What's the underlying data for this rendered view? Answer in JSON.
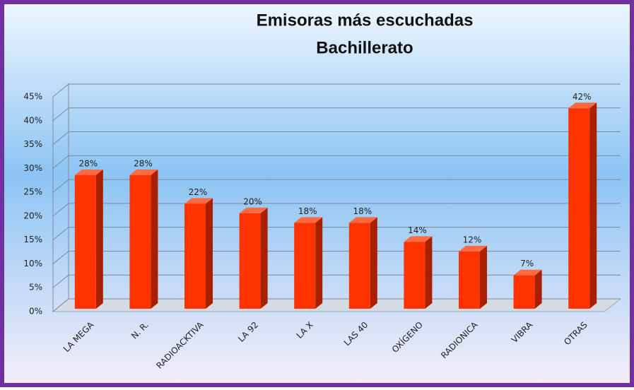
{
  "chart_data": {
    "type": "bar3d",
    "title": "Emisoras más escuchadas",
    "subtitle": "Bachillerato",
    "categories": [
      "LA MEGA",
      "N. R.",
      "RADIOACKTIVA",
      "LA 92",
      "LA X",
      "LAS 40",
      "OXÍGENO",
      "RADIONICA",
      "VIBRA",
      "OTRAS"
    ],
    "values": [
      28,
      28,
      22,
      20,
      18,
      18,
      14,
      12,
      7,
      42
    ],
    "value_labels": [
      "28%",
      "28%",
      "22%",
      "20%",
      "18%",
      "18%",
      "14%",
      "12%",
      "7%",
      "42%"
    ],
    "color": "#ff3300",
    "ylim": [
      0,
      45
    ],
    "yticks": [
      {
        "value": 0,
        "label": "0%"
      },
      {
        "value": 5,
        "label": "5%"
      },
      {
        "value": 10,
        "label": "10%"
      },
      {
        "value": 15,
        "label": "15%"
      },
      {
        "value": 20,
        "label": "20%"
      },
      {
        "value": 25,
        "label": "25%"
      },
      {
        "value": 30,
        "label": "30%"
      },
      {
        "value": 35,
        "label": "35%"
      },
      {
        "value": 40,
        "label": "40%"
      },
      {
        "value": 45,
        "label": "45%"
      }
    ],
    "grid": true
  }
}
